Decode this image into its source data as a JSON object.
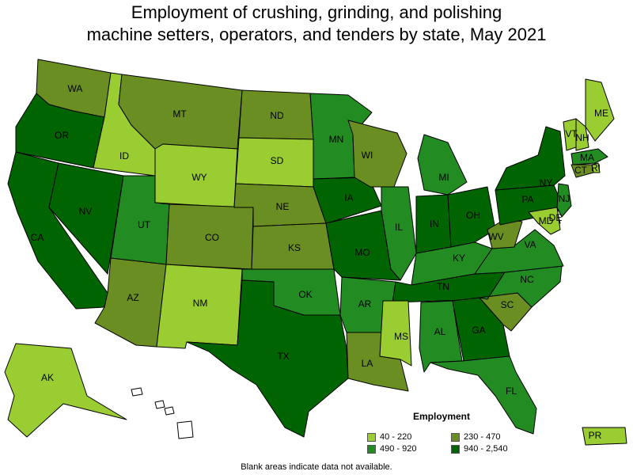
{
  "title_line1": "Employment of crushing, grinding, and polishing",
  "title_line2": "machine setters, operators, and tenders by state, May 2021",
  "legend": {
    "title": "Employment",
    "items": [
      {
        "label": "40 - 220",
        "color": "#9acd32"
      },
      {
        "label": "230 - 470",
        "color": "#6b8e23"
      },
      {
        "label": "490 - 920",
        "color": "#228b22"
      },
      {
        "label": "940 - 2,540",
        "color": "#006400"
      }
    ]
  },
  "footnote": "Blank areas indicate data not available.",
  "states": [
    {
      "abbr": "WA",
      "tier": 1
    },
    {
      "abbr": "OR",
      "tier": 3
    },
    {
      "abbr": "CA",
      "tier": 3
    },
    {
      "abbr": "NV",
      "tier": 3
    },
    {
      "abbr": "ID",
      "tier": 0
    },
    {
      "abbr": "MT",
      "tier": 1
    },
    {
      "abbr": "WY",
      "tier": 0
    },
    {
      "abbr": "UT",
      "tier": 2
    },
    {
      "abbr": "AZ",
      "tier": 1
    },
    {
      "abbr": "CO",
      "tier": 1
    },
    {
      "abbr": "NM",
      "tier": 0
    },
    {
      "abbr": "ND",
      "tier": 1
    },
    {
      "abbr": "SD",
      "tier": 0
    },
    {
      "abbr": "NE",
      "tier": 1
    },
    {
      "abbr": "KS",
      "tier": 1
    },
    {
      "abbr": "OK",
      "tier": 2
    },
    {
      "abbr": "TX",
      "tier": 3
    },
    {
      "abbr": "MN",
      "tier": 2
    },
    {
      "abbr": "IA",
      "tier": 3
    },
    {
      "abbr": "MO",
      "tier": 3
    },
    {
      "abbr": "AR",
      "tier": 2
    },
    {
      "abbr": "LA",
      "tier": 1
    },
    {
      "abbr": "WI",
      "tier": 1
    },
    {
      "abbr": "IL",
      "tier": 2
    },
    {
      "abbr": "MI",
      "tier": 2
    },
    {
      "abbr": "IN",
      "tier": 3
    },
    {
      "abbr": "OH",
      "tier": 3
    },
    {
      "abbr": "KY",
      "tier": 2
    },
    {
      "abbr": "TN",
      "tier": 3
    },
    {
      "abbr": "MS",
      "tier": 0
    },
    {
      "abbr": "AL",
      "tier": 2
    },
    {
      "abbr": "GA",
      "tier": 3
    },
    {
      "abbr": "FL",
      "tier": 2
    },
    {
      "abbr": "SC",
      "tier": 1
    },
    {
      "abbr": "NC",
      "tier": 2
    },
    {
      "abbr": "VA",
      "tier": 2
    },
    {
      "abbr": "WV",
      "tier": 1
    },
    {
      "abbr": "PA",
      "tier": 3
    },
    {
      "abbr": "NY",
      "tier": 3
    },
    {
      "abbr": "ME",
      "tier": 0
    },
    {
      "abbr": "VT",
      "tier": 0
    },
    {
      "abbr": "NH",
      "tier": 0
    },
    {
      "abbr": "MA",
      "tier": 2
    },
    {
      "abbr": "RI",
      "tier": 0
    },
    {
      "abbr": "CT",
      "tier": 1
    },
    {
      "abbr": "NJ",
      "tier": 2
    },
    {
      "abbr": "DE",
      "tier": 0
    },
    {
      "abbr": "MD",
      "tier": 0
    },
    {
      "abbr": "AK",
      "tier": 0
    },
    {
      "abbr": "HI",
      "tier": null
    },
    {
      "abbr": "PR",
      "tier": 0
    }
  ]
}
